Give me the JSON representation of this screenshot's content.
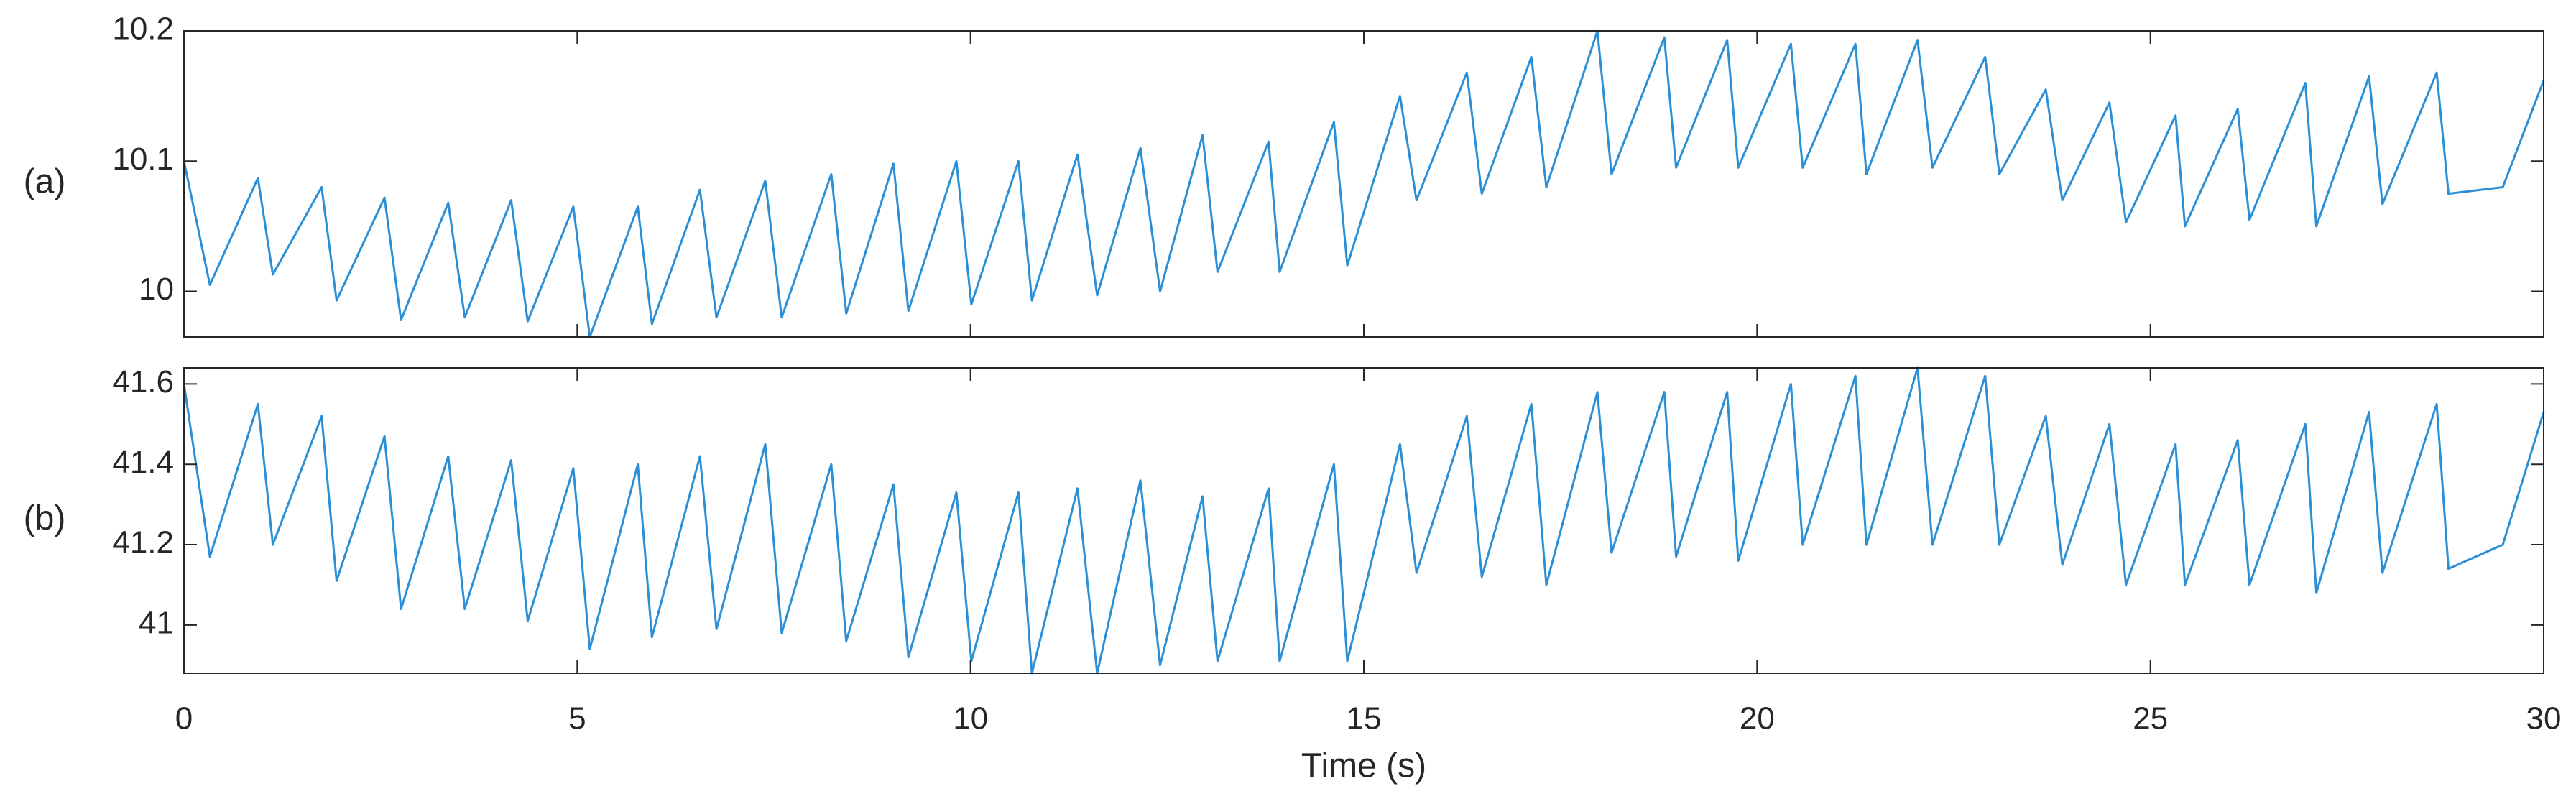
{
  "chart_data": [
    {
      "type": "line",
      "label": "(a)",
      "xlim": [
        0,
        30
      ],
      "ylim": [
        9.965,
        10.2
      ],
      "yticks": [
        10,
        10.1,
        10.2
      ],
      "x": [
        0,
        0.33,
        0.94,
        1.13,
        1.75,
        1.94,
        2.55,
        2.76,
        3.36,
        3.57,
        4.16,
        4.37,
        4.95,
        5.16,
        5.77,
        5.95,
        6.56,
        6.77,
        7.39,
        7.6,
        8.23,
        8.42,
        9.02,
        9.21,
        9.82,
        10.01,
        10.61,
        10.78,
        11.36,
        11.61,
        12.16,
        12.41,
        12.95,
        13.14,
        13.79,
        13.93,
        14.62,
        14.79,
        15.46,
        15.67,
        16.31,
        16.5,
        17.13,
        17.32,
        17.97,
        18.15,
        18.82,
        18.97,
        19.62,
        19.76,
        20.43,
        20.58,
        21.25,
        21.39,
        22.04,
        22.23,
        22.9,
        23.08,
        23.67,
        23.88,
        24.48,
        24.69,
        25.32,
        25.44,
        26.11,
        26.26,
        26.97,
        27.11,
        27.78,
        27.95,
        28.64,
        28.79,
        29.48,
        30
      ],
      "series": [
        {
          "color": "#2b8fd8",
          "values": [
            10.1,
            10.005,
            10.087,
            10.013,
            10.08,
            9.993,
            10.072,
            9.978,
            10.068,
            9.98,
            10.07,
            9.977,
            10.065,
            9.965,
            10.065,
            9.975,
            10.078,
            9.98,
            10.085,
            9.98,
            10.09,
            9.983,
            10.098,
            9.985,
            10.1,
            9.99,
            10.1,
            9.993,
            10.105,
            9.997,
            10.11,
            10.0,
            10.12,
            10.015,
            10.115,
            10.015,
            10.13,
            10.02,
            10.15,
            10.07,
            10.168,
            10.075,
            10.18,
            10.08,
            10.2,
            10.09,
            10.195,
            10.095,
            10.193,
            10.095,
            10.19,
            10.095,
            10.19,
            10.09,
            10.193,
            10.095,
            10.18,
            10.09,
            10.155,
            10.07,
            10.145,
            10.053,
            10.135,
            10.05,
            10.14,
            10.055,
            10.16,
            10.05,
            10.165,
            10.067,
            10.168,
            10.075,
            10.08,
            10.162
          ]
        }
      ]
    },
    {
      "type": "line",
      "label": "(b)",
      "xlabel": "Time (s)",
      "xlim": [
        0,
        30
      ],
      "xticks": [
        0,
        5,
        10,
        15,
        20,
        25,
        30
      ],
      "ylim": [
        40.88,
        41.64
      ],
      "yticks": [
        41,
        41.2,
        41.4,
        41.6
      ],
      "x": [
        0,
        0.33,
        0.94,
        1.13,
        1.75,
        1.94,
        2.55,
        2.76,
        3.36,
        3.57,
        4.16,
        4.37,
        4.95,
        5.16,
        5.77,
        5.95,
        6.56,
        6.77,
        7.39,
        7.6,
        8.23,
        8.42,
        9.02,
        9.21,
        9.82,
        10.01,
        10.61,
        10.78,
        11.36,
        11.61,
        12.16,
        12.41,
        12.95,
        13.14,
        13.79,
        13.93,
        14.62,
        14.79,
        15.46,
        15.67,
        16.31,
        16.5,
        17.13,
        17.32,
        17.97,
        18.15,
        18.82,
        18.97,
        19.62,
        19.76,
        20.43,
        20.58,
        21.25,
        21.39,
        22.04,
        22.23,
        22.9,
        23.08,
        23.67,
        23.88,
        24.48,
        24.69,
        25.32,
        25.44,
        26.11,
        26.26,
        26.97,
        27.11,
        27.78,
        27.95,
        28.64,
        28.79,
        29.48,
        30
      ],
      "series": [
        {
          "color": "#2b8fd8",
          "values": [
            41.6,
            41.17,
            41.55,
            41.2,
            41.52,
            41.11,
            41.47,
            41.04,
            41.42,
            41.04,
            41.41,
            41.01,
            41.39,
            40.94,
            41.4,
            40.97,
            41.42,
            40.99,
            41.45,
            40.98,
            41.4,
            40.96,
            41.35,
            40.92,
            41.33,
            40.91,
            41.33,
            40.88,
            41.34,
            40.88,
            41.36,
            40.9,
            41.32,
            40.91,
            41.34,
            40.91,
            41.4,
            40.91,
            41.45,
            41.13,
            41.52,
            41.12,
            41.55,
            41.1,
            41.58,
            41.18,
            41.58,
            41.17,
            41.58,
            41.16,
            41.6,
            41.2,
            41.62,
            41.2,
            41.64,
            41.2,
            41.62,
            41.2,
            41.52,
            41.15,
            41.5,
            41.1,
            41.45,
            41.1,
            41.46,
            41.1,
            41.5,
            41.08,
            41.53,
            41.13,
            41.55,
            41.14,
            41.2,
            41.53
          ]
        }
      ]
    }
  ]
}
